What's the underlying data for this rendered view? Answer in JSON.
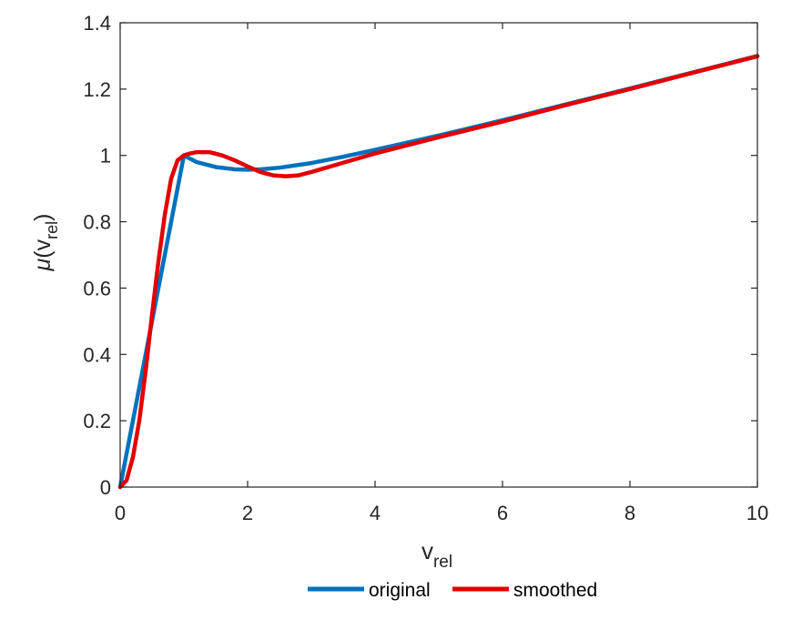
{
  "chart_data": {
    "type": "line",
    "xlabel": {
      "base": "v",
      "sub": "rel"
    },
    "ylabel": {
      "func": "μ",
      "open": "(",
      "base": "v",
      "sub": "rel",
      "close": ")"
    },
    "xlim": [
      0,
      10
    ],
    "ylim": [
      0,
      1.4
    ],
    "xticks": [
      0,
      2,
      4,
      6,
      8,
      10
    ],
    "yticks": [
      0,
      0.2,
      0.4,
      0.6,
      0.8,
      1,
      1.2,
      1.4
    ],
    "grid": false,
    "legend_position": "bottom-center",
    "series": [
      {
        "name": "original",
        "color": "#0072BD",
        "x": [
          0,
          0.5,
          1,
          1.2,
          1.5,
          1.8,
          2,
          2.2,
          2.5,
          3,
          3.5,
          4,
          5,
          6,
          7,
          8,
          9,
          10
        ],
        "y": [
          0,
          0.5,
          1,
          0.98,
          0.965,
          0.958,
          0.957,
          0.958,
          0.963,
          0.977,
          0.996,
          1.017,
          1.06,
          1.106,
          1.154,
          1.202,
          1.251,
          1.3
        ]
      },
      {
        "name": "smoothed",
        "color": "#E30000",
        "x": [
          0,
          0.1,
          0.2,
          0.3,
          0.4,
          0.5,
          0.6,
          0.7,
          0.8,
          0.9,
          1,
          1.1,
          1.2,
          1.4,
          1.6,
          1.8,
          2,
          2.2,
          2.4,
          2.6,
          2.8,
          3,
          3.5,
          4,
          5,
          6,
          7,
          8,
          9,
          10
        ],
        "y": [
          0,
          0.02,
          0.09,
          0.2,
          0.35,
          0.52,
          0.68,
          0.82,
          0.93,
          0.985,
          1.0,
          1.006,
          1.01,
          1.01,
          1.0,
          0.985,
          0.967,
          0.95,
          0.94,
          0.937,
          0.94,
          0.95,
          0.978,
          1.006,
          1.055,
          1.102,
          1.152,
          1.2,
          1.25,
          1.299
        ]
      }
    ]
  }
}
